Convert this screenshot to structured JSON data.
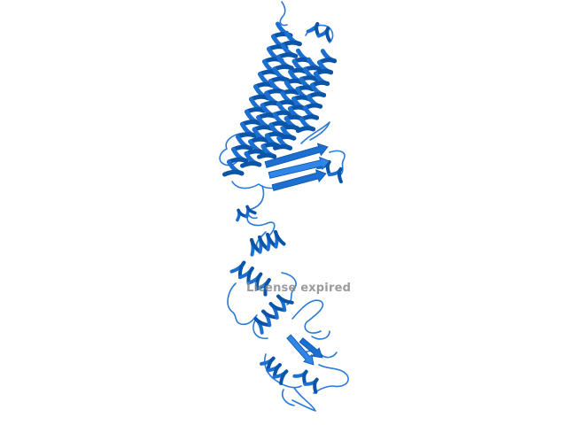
{
  "viewer": {
    "watermark": "License expired"
  },
  "colors": {
    "background": "#ffffff",
    "ribbon_dark": "#0a55a8",
    "ribbon_main": "#1a6fd0",
    "ribbon_light": "#2f86e6",
    "coil": "#2a7ad8",
    "watermark": "#8a8a8a"
  },
  "molecule": {
    "representation": "cartoon"
  }
}
